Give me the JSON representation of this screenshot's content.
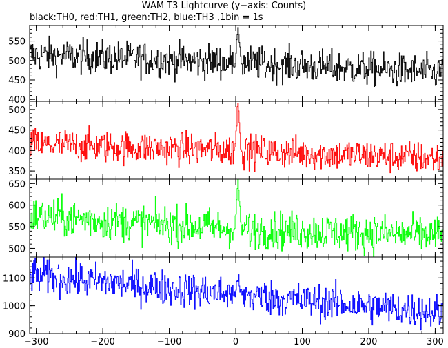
{
  "title": "WAM T3 Lightcurve (y−axis: Counts)",
  "subtitle": "black:TH0, red:TH1, green:TH2, blue:TH3 ,1bin = 1s",
  "chart_data": {
    "type": "line",
    "xlim": [
      -310,
      312
    ],
    "x_ticks": [
      -300,
      -200,
      -100,
      0,
      100,
      200,
      300
    ],
    "x_tick_labels": [
      "−300",
      "−200",
      "−100",
      "0",
      "100",
      "200",
      "300"
    ],
    "bin_seconds": 1,
    "grid": false,
    "series": [
      {
        "name": "TH0",
        "color": "#000000",
        "ylim": [
          395,
          590
        ],
        "yticks": [
          400,
          450,
          500,
          550
        ],
        "trend": [
          [
            -310,
            515
          ],
          [
            0,
            495
          ],
          [
            312,
            468
          ]
        ],
        "noise_amplitude": 22,
        "spike": {
          "x": 3,
          "peak": 590
        }
      },
      {
        "name": "TH1",
        "color": "#ff0000",
        "ylim": [
          330,
          520
        ],
        "yticks": [
          350,
          400,
          450,
          500
        ],
        "trend": [
          [
            -310,
            415
          ],
          [
            0,
            400
          ],
          [
            312,
            380
          ]
        ],
        "noise_amplitude": 20,
        "spike": {
          "x": 3,
          "peak": 520
        }
      },
      {
        "name": "TH2",
        "color": "#00ff00",
        "ylim": [
          480,
          660
        ],
        "yticks": [
          500,
          550,
          600,
          650
        ],
        "trend": [
          [
            -310,
            575
          ],
          [
            0,
            545
          ],
          [
            312,
            530
          ]
        ],
        "noise_amplitude": 22,
        "spike": {
          "x": 3,
          "peak": 655
        }
      },
      {
        "name": "TH3",
        "color": "#0000ff",
        "ylim": [
          900,
          1175
        ],
        "yticks": [
          900,
          1000,
          1100
        ],
        "trend": [
          [
            -310,
            1110
          ],
          [
            0,
            1040
          ],
          [
            312,
            975
          ]
        ],
        "noise_amplitude": 32,
        "spike": {
          "x": 3,
          "peak": 1100
        }
      }
    ]
  }
}
